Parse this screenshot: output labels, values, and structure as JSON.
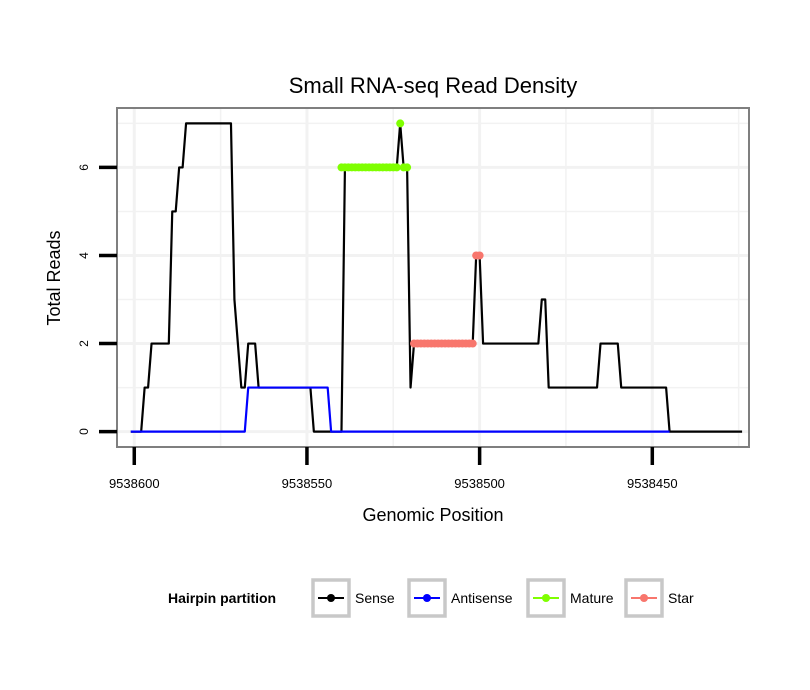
{
  "chart_data": {
    "type": "line",
    "title": "Small RNA-seq Read Density",
    "xlabel": "Genomic Position",
    "ylabel": "Total Reads",
    "xlim": [
      9538605,
      9538422
    ],
    "ylim": [
      -0.35,
      7.35
    ],
    "x_reversed": true,
    "x_ticks": [
      9538600,
      9538550,
      9538500,
      9538450
    ],
    "x_tick_labels": [
      "9538600",
      "9538550",
      "9538500",
      "9538450"
    ],
    "y_ticks": [
      0,
      2,
      4,
      6
    ],
    "y_tick_labels": [
      "0",
      "2",
      "4",
      "6"
    ],
    "grid": true,
    "legend": {
      "title": "Hairpin partition",
      "position": "bottom",
      "entries": [
        "Sense",
        "Antisense",
        "Mature",
        "Star"
      ]
    },
    "series": [
      {
        "name": "Sense",
        "color": "#000000",
        "style": "line",
        "points": [
          [
            9538601,
            0
          ],
          [
            9538598,
            0
          ],
          [
            9538597,
            1
          ],
          [
            9538596,
            1
          ],
          [
            9538595,
            2
          ],
          [
            9538590,
            2
          ],
          [
            9538589,
            5
          ],
          [
            9538588,
            5
          ],
          [
            9538587,
            6
          ],
          [
            9538586,
            6
          ],
          [
            9538585,
            7
          ],
          [
            9538572,
            7
          ],
          [
            9538571,
            3
          ],
          [
            9538569,
            1
          ],
          [
            9538568,
            1
          ],
          [
            9538567,
            2
          ],
          [
            9538565,
            2
          ],
          [
            9538564,
            1
          ],
          [
            9538549,
            1
          ],
          [
            9538548,
            0
          ],
          [
            9538540,
            0
          ],
          [
            9538539,
            6
          ],
          [
            9538524,
            6
          ],
          [
            9538523,
            7
          ],
          [
            9538522,
            6
          ],
          [
            9538521,
            6
          ],
          [
            9538520,
            1
          ],
          [
            9538519,
            2
          ],
          [
            9538502,
            2
          ],
          [
            9538501,
            4
          ],
          [
            9538500,
            4
          ],
          [
            9538499,
            2
          ],
          [
            9538483,
            2
          ],
          [
            9538482,
            3
          ],
          [
            9538481,
            3
          ],
          [
            9538480,
            1
          ],
          [
            9538466,
            1
          ],
          [
            9538465,
            2
          ],
          [
            9538460,
            2
          ],
          [
            9538459,
            1
          ],
          [
            9538446,
            1
          ],
          [
            9538445,
            0
          ],
          [
            9538424,
            0
          ]
        ]
      },
      {
        "name": "Antisense",
        "color": "#0000ff",
        "style": "line",
        "points": [
          [
            9538601,
            0
          ],
          [
            9538568,
            0
          ],
          [
            9538567,
            1
          ],
          [
            9538544,
            1
          ],
          [
            9538543,
            0
          ],
          [
            9538445,
            0
          ]
        ]
      },
      {
        "name": "Mature",
        "color": "#7fff00",
        "style": "points",
        "points": [
          [
            9538540,
            6
          ],
          [
            9538539,
            6
          ],
          [
            9538538,
            6
          ],
          [
            9538537,
            6
          ],
          [
            9538536,
            6
          ],
          [
            9538535,
            6
          ],
          [
            9538534,
            6
          ],
          [
            9538533,
            6
          ],
          [
            9538532,
            6
          ],
          [
            9538531,
            6
          ],
          [
            9538530,
            6
          ],
          [
            9538529,
            6
          ],
          [
            9538528,
            6
          ],
          [
            9538527,
            6
          ],
          [
            9538526,
            6
          ],
          [
            9538525,
            6
          ],
          [
            9538524,
            6
          ],
          [
            9538523,
            7
          ],
          [
            9538522,
            6
          ],
          [
            9538521,
            6
          ]
        ]
      },
      {
        "name": "Star",
        "color": "#f8766d",
        "style": "points",
        "points": [
          [
            9538519,
            2
          ],
          [
            9538518,
            2
          ],
          [
            9538517,
            2
          ],
          [
            9538516,
            2
          ],
          [
            9538515,
            2
          ],
          [
            9538514,
            2
          ],
          [
            9538513,
            2
          ],
          [
            9538512,
            2
          ],
          [
            9538511,
            2
          ],
          [
            9538510,
            2
          ],
          [
            9538509,
            2
          ],
          [
            9538508,
            2
          ],
          [
            9538507,
            2
          ],
          [
            9538506,
            2
          ],
          [
            9538505,
            2
          ],
          [
            9538504,
            2
          ],
          [
            9538503,
            2
          ],
          [
            9538502,
            2
          ],
          [
            9538501,
            4
          ],
          [
            9538500,
            4
          ]
        ]
      }
    ]
  }
}
